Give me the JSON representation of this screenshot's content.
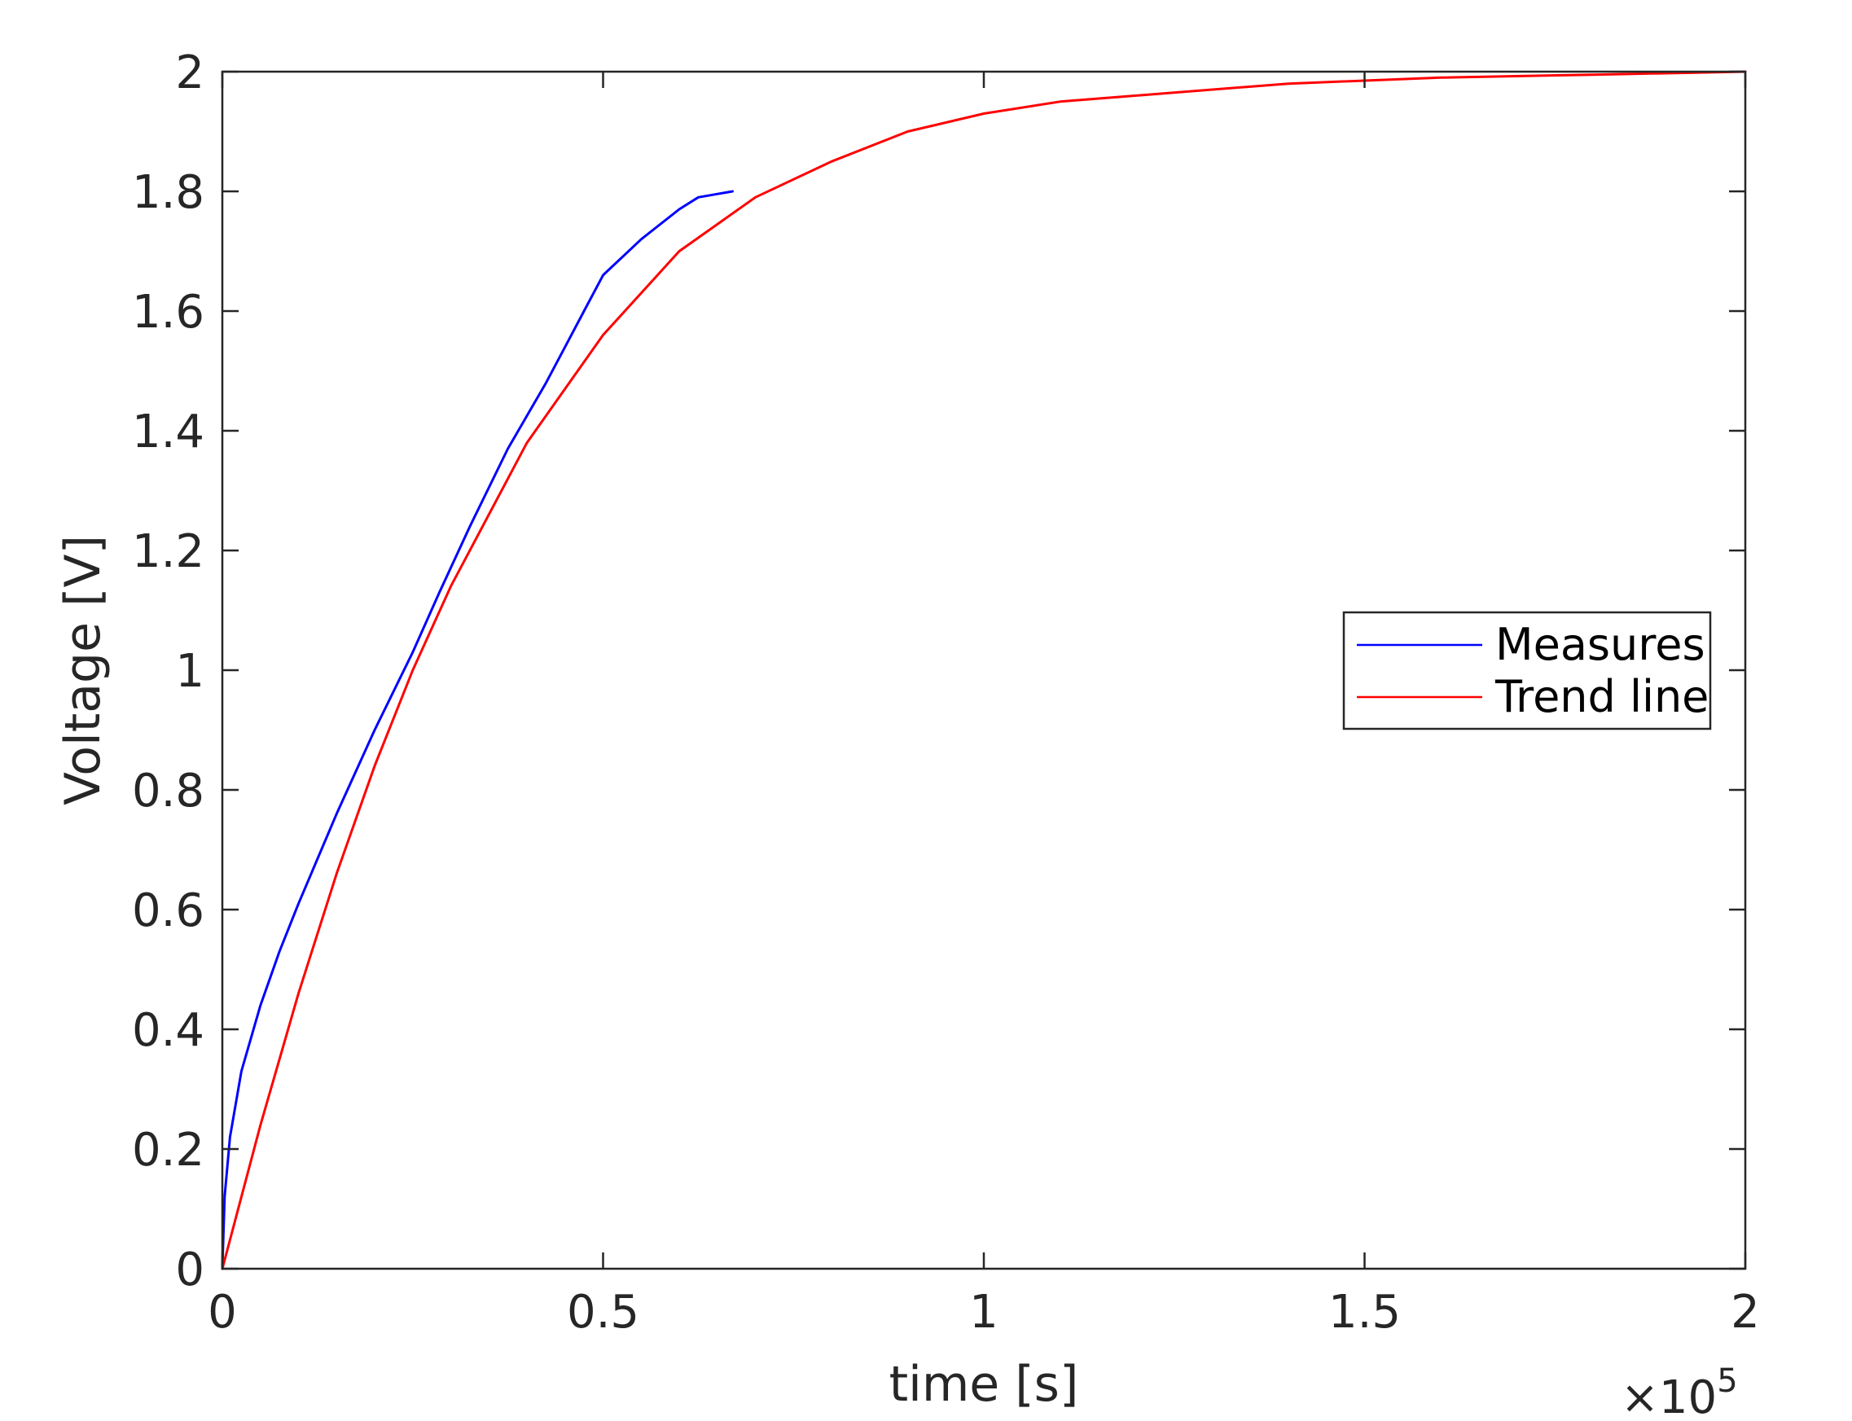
{
  "chart_data": {
    "type": "line",
    "xlabel": "time [s]",
    "ylabel": "Voltage [V]",
    "x_multiplier_label": "×10",
    "x_multiplier_exp": "5",
    "xlim": [
      0,
      200000
    ],
    "ylim": [
      0,
      2
    ],
    "x_tick_values": [
      0,
      50000,
      100000,
      150000,
      200000
    ],
    "x_tick_labels": [
      "0",
      "0.5",
      "1",
      "1.5",
      "2"
    ],
    "y_tick_values": [
      0,
      0.2,
      0.4,
      0.6,
      0.8,
      1,
      1.2,
      1.4,
      1.6,
      1.8,
      2
    ],
    "y_tick_labels": [
      "0",
      "0.2",
      "0.4",
      "0.6",
      "0.8",
      "1",
      "1.2",
      "1.4",
      "1.6",
      "1.8",
      "2"
    ],
    "grid": false,
    "legend_position": "right-middle",
    "series": [
      {
        "name": "Measures",
        "color": "#0000ff",
        "x": [
          0,
          300,
          1000,
          2500,
          5000,
          7500,
          10000,
          15000,
          20000,
          25000,
          28500,
          32500,
          37500,
          42500,
          45000,
          47500,
          50000,
          55000,
          60000,
          62500,
          67000
        ],
        "y": [
          0,
          0.12,
          0.22,
          0.33,
          0.44,
          0.53,
          0.61,
          0.76,
          0.9,
          1.03,
          1.13,
          1.24,
          1.37,
          1.48,
          1.54,
          1.6,
          1.66,
          1.72,
          1.77,
          1.79,
          1.8
        ]
      },
      {
        "name": "Trend line",
        "color": "#ff0000",
        "x": [
          0,
          2500,
          5000,
          10000,
          15000,
          20000,
          25000,
          30000,
          40000,
          50000,
          60000,
          70000,
          80000,
          90000,
          100000,
          110000,
          120000,
          140000,
          160000,
          180000,
          200000
        ],
        "y": [
          0,
          0.12,
          0.24,
          0.46,
          0.66,
          0.84,
          1.0,
          1.14,
          1.38,
          1.56,
          1.7,
          1.79,
          1.85,
          1.9,
          1.93,
          1.95,
          1.96,
          1.98,
          1.99,
          1.995,
          2.0
        ]
      }
    ]
  }
}
